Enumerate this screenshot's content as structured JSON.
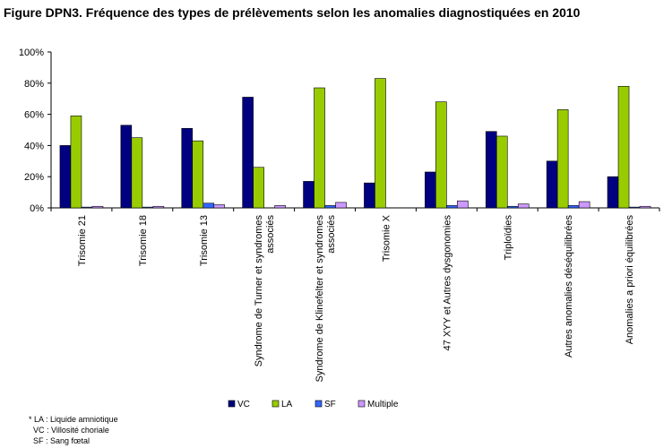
{
  "chart_data": {
    "type": "bar",
    "title": "Figure DPN3. Fréquence des types de prélèvements selon les anomalies diagnostiquées en 2010",
    "categories": [
      [
        "Trisomie 21"
      ],
      [
        "Trisomie 18"
      ],
      [
        "Trisomie 13"
      ],
      [
        "Syndrome de Turner et syndromes",
        "associés"
      ],
      [
        "Syndrome de Klinefelter et syndromes",
        "associés"
      ],
      [
        "Trisomie X"
      ],
      [
        "47 XYY et Autres dysgonomies"
      ],
      [
        "Triploïdies"
      ],
      [
        "Autres anomalies déséquilibrées"
      ],
      [
        "Anomalies a priori équilibrées"
      ]
    ],
    "series": [
      {
        "name": "VC",
        "color": "#000080",
        "values": [
          40,
          53,
          51,
          71,
          17,
          16,
          23,
          49,
          30,
          20
        ]
      },
      {
        "name": "LA",
        "color": "#99CC00",
        "values": [
          59,
          45,
          43,
          26,
          77,
          83,
          68,
          46,
          63,
          78
        ]
      },
      {
        "name": "SF",
        "color": "#3366FF",
        "values": [
          0.5,
          0.5,
          3,
          0,
          1.5,
          0,
          1.5,
          1,
          1.5,
          0.5
        ]
      },
      {
        "name": "Multiple",
        "color": "#CC99FF",
        "values": [
          1,
          1,
          2,
          1.5,
          3.5,
          0,
          4.5,
          2.5,
          4,
          1
        ]
      }
    ],
    "ylim": [
      0,
      100
    ],
    "yticks": [
      "0%",
      "20%",
      "40%",
      "60%",
      "80%",
      "100%"
    ],
    "grid": false,
    "legend": "bottom"
  },
  "notes": [
    "* LA : Liquide amniotique",
    "  VC : Villosité choriale",
    "  SF : Sang fœtal"
  ]
}
